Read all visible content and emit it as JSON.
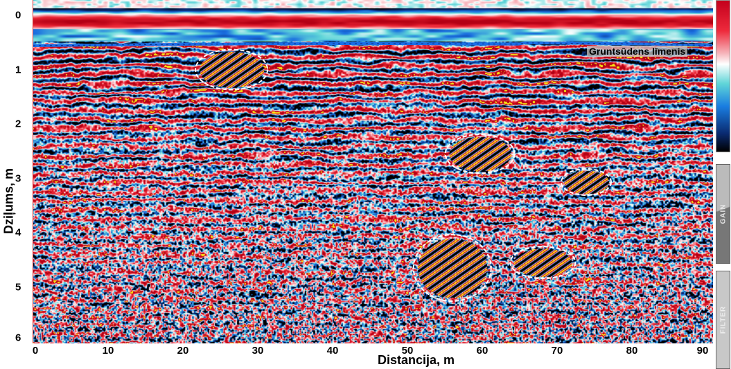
{
  "chart_data": {
    "type": "heatmap",
    "title": "",
    "xlabel": "Distancija, m",
    "ylabel": "Dziļums, m",
    "xlim": [
      0,
      91
    ],
    "ylim": [
      6,
      0
    ],
    "x_ticks": [
      "0",
      "10",
      "20",
      "30",
      "40",
      "50",
      "60",
      "70",
      "80",
      "90"
    ],
    "y_ticks": [
      "0",
      "1",
      "2",
      "3",
      "4",
      "5",
      "6"
    ],
    "colormap": [
      "#c4001c",
      "#ee2a3c",
      "#ffffff",
      "#5fd5d8",
      "#1a7de0",
      "#000000"
    ],
    "groundwater": {
      "label": "Gruntsūdens līmenis",
      "depth_m": 0.55,
      "color": "#1a6ee8"
    },
    "anomalies": [
      {
        "x_m": 26.4,
        "depth_m": 1.0
      },
      {
        "x_m": 59.6,
        "depth_m": 2.55
      },
      {
        "x_m": 73.8,
        "depth_m": 3.07
      },
      {
        "x_m": 55.9,
        "depth_m": 4.65
      },
      {
        "x_m": 68.0,
        "depth_m": 4.55
      }
    ],
    "grid": false
  },
  "side_panel": {
    "gain_label": "GAIN",
    "filter_label": "FILTER"
  }
}
